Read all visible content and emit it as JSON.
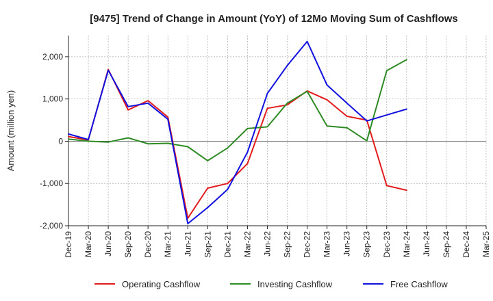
{
  "chart_data": {
    "type": "line",
    "title": "[9475]  Trend of Change in Amount (YoY) of 12Mo Moving Sum of Cashflows",
    "xlabel": "",
    "ylabel": "Amount (million yen)",
    "ylim": [
      -2000,
      2500
    ],
    "yticks": [
      -2000,
      -1000,
      0,
      1000,
      2000
    ],
    "ytick_labels": [
      "-2,000",
      "-1,000",
      "0",
      "1,000",
      "2,000"
    ],
    "grid": true,
    "legend_position": "bottom",
    "categories": [
      "Dec-19",
      "Mar-20",
      "Jun-20",
      "Sep-20",
      "Dec-20",
      "Mar-21",
      "Jun-21",
      "Sep-21",
      "Dec-21",
      "Mar-22",
      "Jun-22",
      "Sep-22",
      "Dec-22",
      "Mar-23",
      "Jun-23",
      "Sep-23",
      "Dec-23",
      "Mar-24",
      "Jun-24",
      "Sep-24",
      "Dec-24",
      "Mar-25"
    ],
    "series": [
      {
        "name": "Operating Cashflow",
        "color": "#e31a1c",
        "values": [
          110,
          30,
          1700,
          740,
          960,
          570,
          -1820,
          -1110,
          -1000,
          -530,
          780,
          860,
          1190,
          980,
          590,
          500,
          -1050,
          -1160,
          null,
          null,
          null,
          null
        ]
      },
      {
        "name": "Investing Cashflow",
        "color": "#2e8b24",
        "values": [
          50,
          0,
          -20,
          80,
          -60,
          -50,
          -130,
          -460,
          -160,
          300,
          340,
          900,
          1180,
          360,
          320,
          10,
          1670,
          1930,
          null,
          null,
          null,
          null
        ]
      },
      {
        "name": "Free Cashflow",
        "color": "#1010e0",
        "values": [
          170,
          40,
          1680,
          820,
          900,
          520,
          -1950,
          -1570,
          -1140,
          -260,
          1130,
          1790,
          2360,
          1330,
          900,
          480,
          620,
          760,
          null,
          null,
          null,
          null
        ]
      }
    ]
  }
}
